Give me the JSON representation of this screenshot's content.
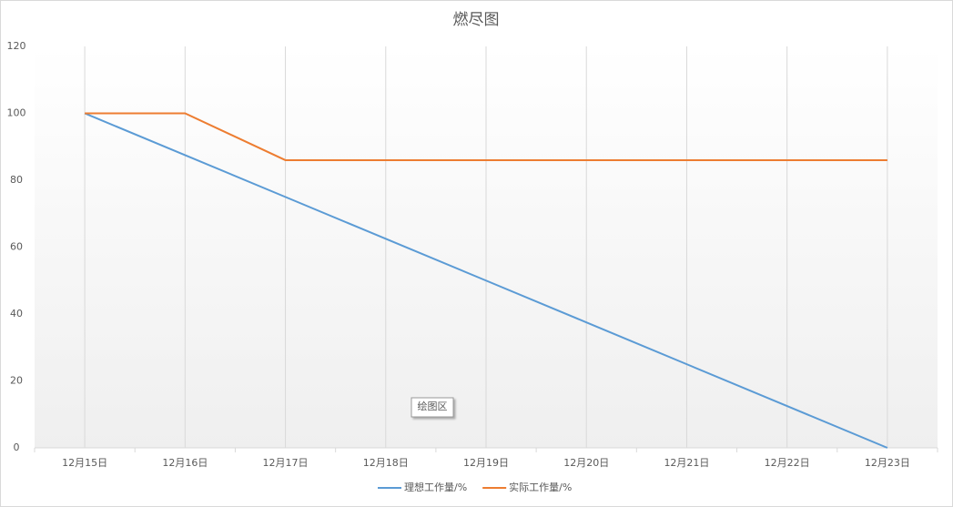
{
  "chart_data": {
    "type": "line",
    "title": "燃尽图",
    "categories": [
      "12月15日",
      "12月16日",
      "12月17日",
      "12月18日",
      "12月19日",
      "12月20日",
      "12月21日",
      "12月22日",
      "12月23日"
    ],
    "series": [
      {
        "name": "理想工作量/%",
        "color": "#5b9bd5",
        "values": [
          100,
          87.5,
          75,
          62.5,
          50,
          37.5,
          25,
          12.5,
          0
        ]
      },
      {
        "name": "实际工作量/%",
        "color": "#ed7d31",
        "values": [
          100,
          100,
          86,
          86,
          86,
          86,
          86,
          86,
          86
        ]
      }
    ],
    "ylim": [
      0,
      120
    ],
    "yticks": [
      0,
      20,
      40,
      60,
      80,
      100,
      120
    ],
    "grid": "x",
    "legend": "bottom"
  },
  "tooltip": "绘图区"
}
